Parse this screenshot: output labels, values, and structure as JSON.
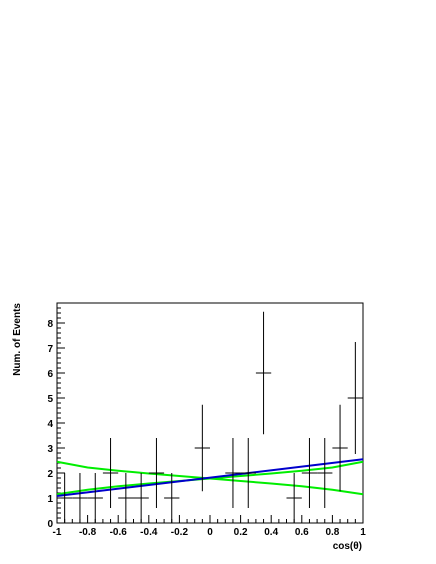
{
  "chart_data": {
    "type": "scatter",
    "title": "",
    "xlabel": "cos(θ)",
    "ylabel": "Num. of Events",
    "xlim": [
      -1,
      1
    ],
    "ylim": [
      0,
      8.8
    ],
    "grid": false,
    "x_ticks": [
      "-1",
      "-0.8",
      "-0.6",
      "-0.4",
      "-0.2",
      "0",
      "0.2",
      "0.4",
      "0.6",
      "0.8",
      "1"
    ],
    "y_ticks": [
      "0",
      "1",
      "2",
      "3",
      "4",
      "5",
      "6",
      "7",
      "8"
    ],
    "bin_width": 0.1,
    "series": [
      {
        "kind": "error-bars",
        "color": "#000000",
        "points": [
          {
            "x": -0.95,
            "y": 1,
            "ylo": 0,
            "yhi": 2
          },
          {
            "x": -0.85,
            "y": 1,
            "ylo": 0,
            "yhi": 2
          },
          {
            "x": -0.75,
            "y": 1,
            "ylo": 0,
            "yhi": 2
          },
          {
            "x": -0.65,
            "y": 2,
            "ylo": 0.6,
            "yhi": 3.4
          },
          {
            "x": -0.55,
            "y": 1,
            "ylo": 0,
            "yhi": 2
          },
          {
            "x": -0.45,
            "y": 1,
            "ylo": 0,
            "yhi": 2
          },
          {
            "x": -0.35,
            "y": 2,
            "ylo": 0.6,
            "yhi": 3.4
          },
          {
            "x": -0.25,
            "y": 1,
            "ylo": 0,
            "yhi": 2
          },
          {
            "x": -0.05,
            "y": 3,
            "ylo": 1.27,
            "yhi": 4.73
          },
          {
            "x": 0.15,
            "y": 2,
            "ylo": 0.6,
            "yhi": 3.4
          },
          {
            "x": 0.25,
            "y": 2,
            "ylo": 0.6,
            "yhi": 3.4
          },
          {
            "x": 0.35,
            "y": 6,
            "ylo": 3.55,
            "yhi": 8.45
          },
          {
            "x": 0.55,
            "y": 1,
            "ylo": 0,
            "yhi": 2
          },
          {
            "x": 0.65,
            "y": 2,
            "ylo": 0.6,
            "yhi": 3.4
          },
          {
            "x": 0.75,
            "y": 2,
            "ylo": 0.6,
            "yhi": 3.4
          },
          {
            "x": 0.85,
            "y": 3,
            "ylo": 1.27,
            "yhi": 4.73
          },
          {
            "x": 0.95,
            "y": 5,
            "ylo": 2.76,
            "yhi": 7.24
          }
        ]
      },
      {
        "kind": "fit-line",
        "color": "#0000cc",
        "x": [
          -1,
          1
        ],
        "y": [
          1.08,
          2.55
        ]
      },
      {
        "kind": "band-upper",
        "color": "#00ee00",
        "x": [
          -1,
          -0.8,
          -0.6,
          -0.4,
          -0.2,
          0,
          0.2,
          0.4,
          0.6,
          0.8,
          1
        ],
        "y": [
          1.15,
          1.33,
          1.47,
          1.58,
          1.68,
          1.78,
          1.88,
          1.98,
          2.09,
          2.22,
          2.45
        ]
      },
      {
        "kind": "band-lower",
        "color": "#00ee00",
        "x": [
          -1,
          -0.8,
          -0.6,
          -0.4,
          -0.2,
          0,
          0.2,
          0.4,
          0.6,
          0.8,
          1
        ],
        "y": [
          2.45,
          2.22,
          2.09,
          1.98,
          1.88,
          1.78,
          1.68,
          1.58,
          1.47,
          1.33,
          1.15
        ]
      }
    ]
  }
}
